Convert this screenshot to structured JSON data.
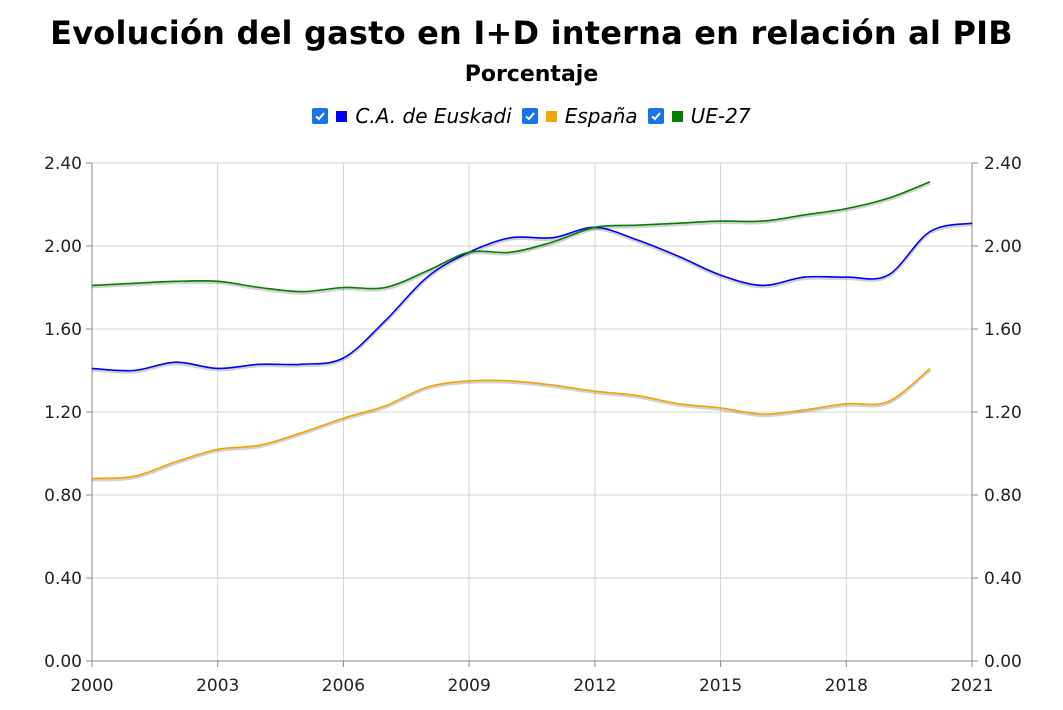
{
  "chart_data": {
    "type": "line",
    "title": "Evolución del gasto en I+D interna en relación al PIB",
    "subtitle": "Porcentaje",
    "x_ticks": [
      "2000",
      "2003",
      "2006",
      "2009",
      "2012",
      "2015",
      "2018",
      "2021"
    ],
    "y_ticks": [
      "0.00",
      "0.40",
      "0.80",
      "1.20",
      "1.60",
      "2.00",
      "2.40"
    ],
    "xlim": [
      2000,
      2021
    ],
    "ylim": [
      0,
      2.4
    ],
    "grid": true,
    "legend_position": "top",
    "x": [
      2000,
      2001,
      2002,
      2003,
      2004,
      2005,
      2006,
      2007,
      2008,
      2009,
      2010,
      2011,
      2012,
      2013,
      2014,
      2015,
      2016,
      2017,
      2018,
      2019,
      2020,
      2021
    ],
    "series": [
      {
        "name": "C.A. de Euskadi",
        "color": "#0000ff",
        "checked": true,
        "values": [
          1.41,
          1.4,
          1.44,
          1.41,
          1.43,
          1.43,
          1.46,
          1.64,
          1.85,
          1.97,
          2.04,
          2.04,
          2.09,
          2.03,
          1.95,
          1.86,
          1.81,
          1.85,
          1.85,
          1.86,
          2.07,
          2.11
        ]
      },
      {
        "name": "España",
        "color": "#f5a300",
        "checked": true,
        "values": [
          0.88,
          0.89,
          0.96,
          1.02,
          1.04,
          1.1,
          1.17,
          1.23,
          1.32,
          1.35,
          1.35,
          1.33,
          1.3,
          1.28,
          1.24,
          1.22,
          1.19,
          1.21,
          1.24,
          1.25,
          1.41,
          null
        ]
      },
      {
        "name": "UE-27",
        "color": "#008000",
        "checked": true,
        "values": [
          1.81,
          1.82,
          1.83,
          1.83,
          1.8,
          1.78,
          1.8,
          1.8,
          1.88,
          1.97,
          1.97,
          2.02,
          2.09,
          2.1,
          2.11,
          2.12,
          2.12,
          2.15,
          2.18,
          2.23,
          2.31,
          null
        ]
      }
    ]
  }
}
